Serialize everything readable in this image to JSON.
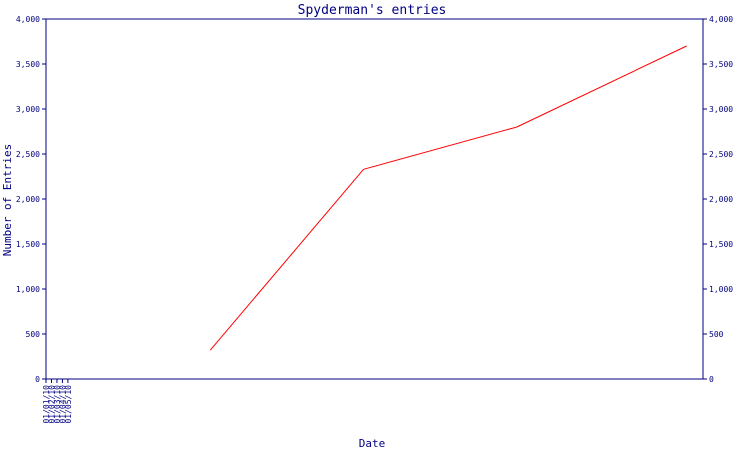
{
  "chart_data": {
    "type": "line",
    "title": "Spyderman's entries",
    "xlabel": "Date",
    "ylabel": "Number of Entries",
    "x_ticks": [
      "01/01/10",
      "01/02/10",
      "01/03/10",
      "01/04/10",
      "01/05/10"
    ],
    "xlim": [
      "2010-01-01",
      "2010-05-01"
    ],
    "ylim": [
      0,
      4000
    ],
    "y_ticks": [
      0,
      500,
      1000,
      1500,
      2000,
      2500,
      3000,
      3500,
      4000
    ],
    "y_tick_labels": [
      "0",
      "500",
      "1,000",
      "1,500",
      "2,000",
      "2,500",
      "3,000",
      "3,500",
      "4,000"
    ],
    "grid": false,
    "y_axis_mirrored_right": true,
    "series": [
      {
        "color": "#ff0000",
        "x": [
          "2010-01-31",
          "2010-02-28",
          "2010-03-28",
          "2010-04-28"
        ],
        "values": [
          320,
          2330,
          2800,
          3700
        ]
      }
    ],
    "colors": {
      "axis": "#000080",
      "text": "#000080",
      "line": "#ff0000",
      "background": "#ffffff"
    }
  }
}
